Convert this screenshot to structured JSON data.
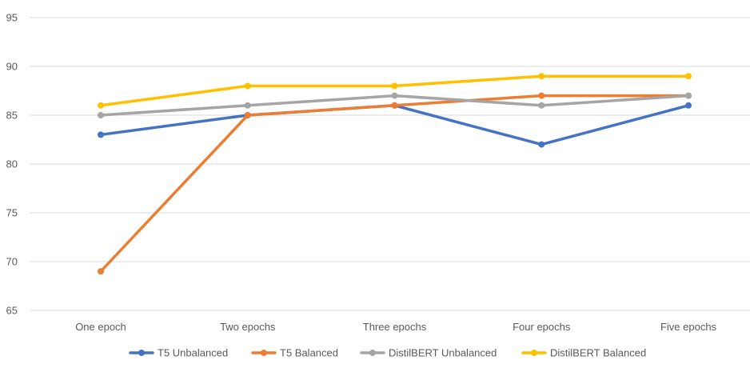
{
  "chart_data": {
    "type": "line",
    "categories": [
      "One epoch",
      "Two epochs",
      "Three epochs",
      "Four epochs",
      "Five epochs"
    ],
    "series": [
      {
        "name": "T5 Unbalanced",
        "color": "#4472C4",
        "values": [
          83,
          85,
          86,
          82,
          86
        ]
      },
      {
        "name": "T5 Balanced",
        "color": "#ED7D31",
        "values": [
          69,
          85,
          86,
          87,
          87
        ]
      },
      {
        "name": "DistilBERT Unbalanced",
        "color": "#A5A5A5",
        "values": [
          85,
          86,
          87,
          86,
          87
        ]
      },
      {
        "name": "DistilBERT Balanced",
        "color": "#FFC000",
        "values": [
          86,
          88,
          88,
          89,
          89
        ]
      }
    ],
    "ylim": [
      65,
      95
    ],
    "yticks": [
      65,
      70,
      75,
      80,
      85,
      90,
      95
    ],
    "grid": true,
    "legend_position": "bottom"
  }
}
